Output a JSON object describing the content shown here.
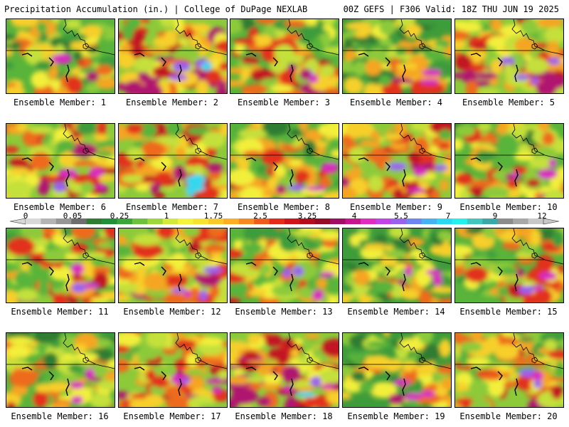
{
  "header": {
    "title": "Precipitation Accumulation (in.) | College of DuPage NEXLAB",
    "run_info": "00Z GEFS | F306 Valid: 18Z THU JUN 19 2025"
  },
  "colorbar": {
    "ticks": [
      "0",
      "0.05",
      "0.25",
      "1",
      "1.75",
      "2.5",
      "3.25",
      "4",
      "5.5",
      "7",
      "9",
      "12"
    ],
    "colors": [
      "#d8d8d8",
      "#b4b4b4",
      "#969696",
      "#6e6e6e",
      "#2e7d32",
      "#1f8f3a",
      "#3aa63a",
      "#6cc23c",
      "#9fd63c",
      "#d4ea3a",
      "#f4f53a",
      "#f7e22e",
      "#f9c92a",
      "#fbae24",
      "#f68a20",
      "#f05a1c",
      "#e52a1c",
      "#d1141c",
      "#b40c1c",
      "#960a28",
      "#a10c64",
      "#c8148c",
      "#e02cc0",
      "#c044e8",
      "#9a60ee",
      "#6e86f2",
      "#46b2f4",
      "#2ad8f4",
      "#22f0ee",
      "#40c8c0",
      "#3aa8a8",
      "#8c8c8c",
      "#a8a8a8",
      "#c8c8c8"
    ]
  },
  "members": [
    {
      "label": "Ensemble Member: 1"
    },
    {
      "label": "Ensemble Member: 2"
    },
    {
      "label": "Ensemble Member: 3"
    },
    {
      "label": "Ensemble Member: 4"
    },
    {
      "label": "Ensemble Member: 5"
    },
    {
      "label": "Ensemble Member: 6"
    },
    {
      "label": "Ensemble Member: 7"
    },
    {
      "label": "Ensemble Member: 8"
    },
    {
      "label": "Ensemble Member: 9"
    },
    {
      "label": "Ensemble Member: 10"
    },
    {
      "label": "Ensemble Member: 11"
    },
    {
      "label": "Ensemble Member: 12"
    },
    {
      "label": "Ensemble Member: 13"
    },
    {
      "label": "Ensemble Member: 14"
    },
    {
      "label": "Ensemble Member: 15"
    },
    {
      "label": "Ensemble Member: 16"
    },
    {
      "label": "Ensemble Member: 17"
    },
    {
      "label": "Ensemble Member: 18"
    },
    {
      "label": "Ensemble Member: 19"
    },
    {
      "label": "Ensemble Member: 20"
    }
  ]
}
